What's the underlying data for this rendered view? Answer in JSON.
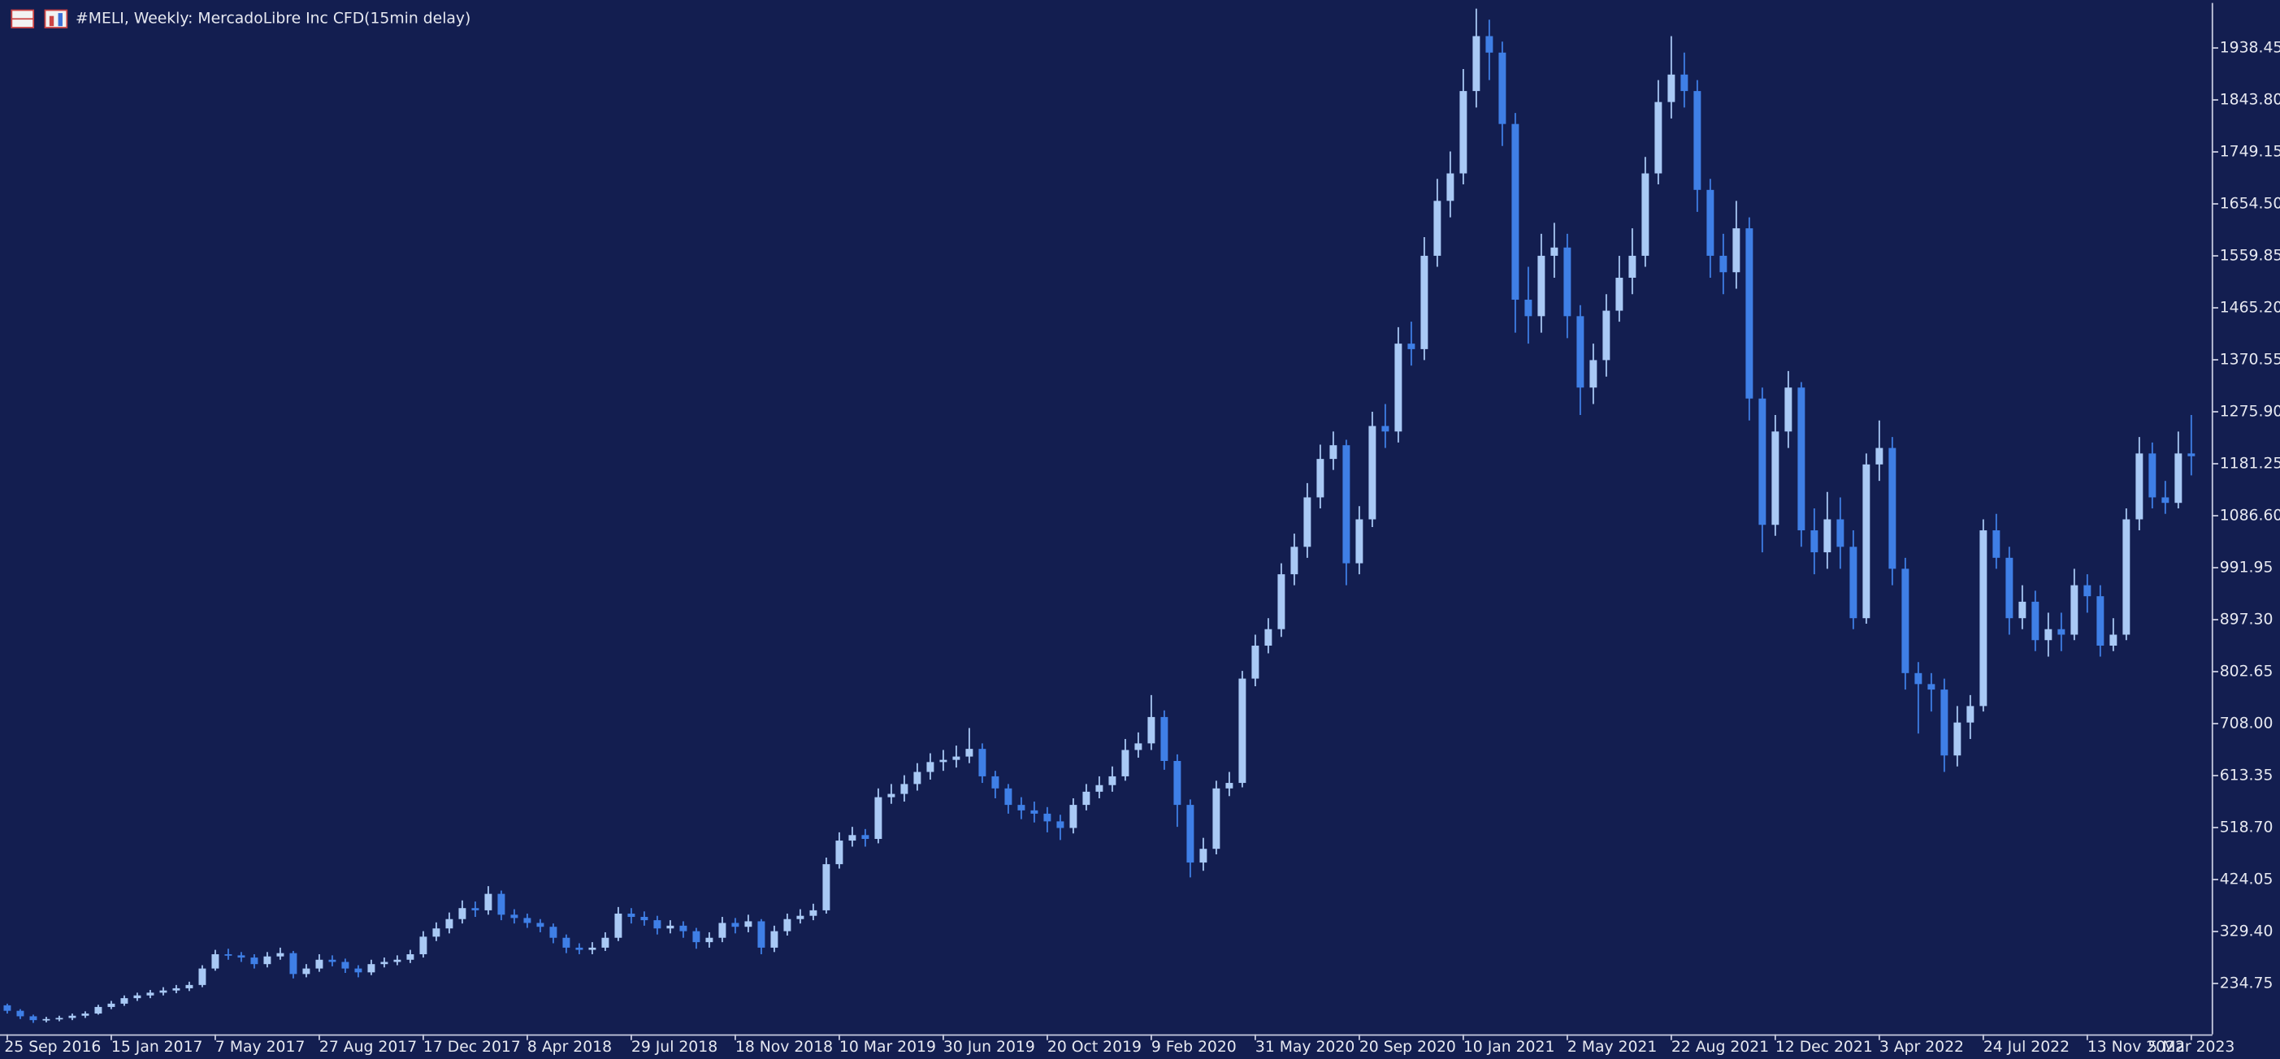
{
  "chart_data": {
    "type": "candlestick",
    "title": "#MELI, Weekly:  MercadoLibre Inc CFD(15min delay)",
    "categories": [
      "25 Sep 2016",
      null,
      null,
      null,
      null,
      null,
      null,
      null,
      "15 Jan 2017",
      null,
      null,
      null,
      null,
      null,
      null,
      null,
      "7 May 2017",
      null,
      null,
      null,
      null,
      null,
      null,
      null,
      "27 Aug 2017",
      null,
      null,
      null,
      null,
      null,
      null,
      null,
      "17 Dec 2017",
      null,
      null,
      null,
      null,
      null,
      null,
      null,
      "8 Apr 2018",
      null,
      null,
      null,
      null,
      null,
      null,
      null,
      "29 Jul 2018",
      null,
      null,
      null,
      null,
      null,
      null,
      null,
      "18 Nov 2018",
      null,
      null,
      null,
      null,
      null,
      null,
      null,
      "10 Mar 2019",
      null,
      null,
      null,
      null,
      null,
      null,
      null,
      "30 Jun 2019",
      null,
      null,
      null,
      null,
      null,
      null,
      null,
      "20 Oct 2019",
      null,
      null,
      null,
      null,
      null,
      null,
      null,
      "9 Feb 2020",
      null,
      null,
      null,
      null,
      null,
      null,
      null,
      "31 May 2020",
      null,
      null,
      null,
      null,
      null,
      null,
      null,
      "20 Sep 2020",
      null,
      null,
      null,
      null,
      null,
      null,
      null,
      "10 Jan 2021",
      null,
      null,
      null,
      null,
      null,
      null,
      null,
      "2 May 2021",
      null,
      null,
      null,
      null,
      null,
      null,
      null,
      "22 Aug 2021",
      null,
      null,
      null,
      null,
      null,
      null,
      null,
      "12 Dec 2021",
      null,
      null,
      null,
      null,
      null,
      null,
      null,
      "3 Apr 2022",
      null,
      null,
      null,
      null,
      null,
      null,
      null,
      "24 Jul 2022",
      null,
      null,
      null,
      null,
      null,
      null,
      null,
      "13 Nov 2022",
      null,
      null,
      null,
      null,
      null,
      null,
      null,
      "5 Mar 2023"
    ],
    "open": [
      195,
      185,
      175,
      168,
      170,
      172,
      176,
      180,
      192,
      198,
      208,
      213,
      218,
      222,
      226,
      232,
      262,
      288,
      286,
      282,
      270,
      284,
      290,
      252,
      262,
      278,
      274,
      262,
      255,
      270,
      274,
      278,
      288,
      320,
      335,
      352,
      372,
      368,
      398,
      360,
      354,
      345,
      338,
      318,
      300,
      296,
      300,
      318,
      362,
      356,
      350,
      335,
      340,
      330,
      310,
      318,
      345,
      338,
      348,
      300,
      330,
      352,
      358,
      368,
      452,
      495,
      505,
      498,
      574,
      580,
      598,
      620,
      638,
      642,
      648,
      662,
      612,
      590,
      560,
      550,
      544,
      530,
      518,
      560,
      584,
      596,
      612,
      660,
      672,
      720,
      640,
      560,
      455,
      480,
      590,
      600,
      790,
      850,
      880,
      980,
      1030,
      1120,
      1190,
      1215,
      1000,
      1080,
      1250,
      1240,
      1400,
      1390,
      1560,
      1660,
      1710,
      1860,
      1960,
      1930,
      1800,
      1480,
      1450,
      1560,
      1575,
      1450,
      1320,
      1370,
      1460,
      1520,
      1560,
      1710,
      1840,
      1890,
      1860,
      1680,
      1560,
      1530,
      1610,
      1300,
      1070,
      1240,
      1320,
      1060,
      1020,
      1080,
      1030,
      900,
      1180,
      1210,
      990,
      800,
      780,
      770,
      650,
      710,
      740,
      1060,
      1010,
      900,
      930,
      860,
      880,
      870,
      960,
      940,
      850,
      870,
      1080,
      1200,
      1120,
      1110,
      1200
    ],
    "high": [
      198,
      188,
      178,
      174,
      176,
      180,
      184,
      196,
      203,
      213,
      218,
      223,
      228,
      232,
      238,
      268,
      296,
      298,
      292,
      288,
      292,
      300,
      294,
      270,
      288,
      286,
      280,
      268,
      278,
      282,
      286,
      296,
      330,
      346,
      364,
      386,
      384,
      412,
      404,
      370,
      362,
      352,
      344,
      324,
      308,
      310,
      328,
      374,
      372,
      366,
      358,
      350,
      348,
      336,
      328,
      356,
      354,
      360,
      352,
      340,
      362,
      370,
      380,
      464,
      510,
      520,
      516,
      590,
      598,
      614,
      636,
      654,
      660,
      668,
      700,
      672,
      622,
      598,
      574,
      566,
      556,
      542,
      572,
      598,
      612,
      630,
      680,
      692,
      760,
      732,
      652,
      570,
      500,
      604,
      620,
      804,
      870,
      900,
      1000,
      1054,
      1146,
      1216,
      1240,
      1225,
      1104,
      1276,
      1290,
      1430,
      1440,
      1594,
      1700,
      1750,
      1900,
      2010,
      1990,
      1950,
      1820,
      1540,
      1600,
      1620,
      1600,
      1470,
      1400,
      1490,
      1560,
      1610,
      1740,
      1880,
      1960,
      1930,
      1880,
      1700,
      1600,
      1660,
      1630,
      1320,
      1270,
      1350,
      1330,
      1100,
      1130,
      1120,
      1060,
      1200,
      1260,
      1230,
      1010,
      820,
      800,
      790,
      740,
      760,
      1080,
      1090,
      1030,
      960,
      950,
      910,
      910,
      990,
      980,
      960,
      900,
      1100,
      1230,
      1220,
      1150,
      1240,
      1270
    ],
    "low": [
      180,
      170,
      163,
      164,
      166,
      168,
      172,
      178,
      188,
      194,
      203,
      208,
      213,
      217,
      221,
      228,
      258,
      278,
      274,
      262,
      264,
      278,
      244,
      246,
      256,
      266,
      254,
      246,
      250,
      264,
      268,
      272,
      282,
      312,
      326,
      344,
      356,
      360,
      350,
      344,
      336,
      328,
      308,
      290,
      288,
      288,
      294,
      312,
      344,
      340,
      324,
      326,
      318,
      298,
      300,
      310,
      326,
      328,
      288,
      292,
      322,
      344,
      350,
      362,
      444,
      484,
      484,
      490,
      562,
      566,
      586,
      606,
      622,
      628,
      636,
      600,
      572,
      544,
      534,
      528,
      510,
      496,
      508,
      550,
      572,
      584,
      604,
      646,
      660,
      624,
      520,
      428,
      440,
      470,
      576,
      592,
      776,
      836,
      866,
      960,
      1010,
      1100,
      1170,
      960,
      980,
      1066,
      1210,
      1220,
      1360,
      1370,
      1540,
      1630,
      1690,
      1830,
      1880,
      1760,
      1420,
      1400,
      1420,
      1520,
      1410,
      1270,
      1290,
      1340,
      1440,
      1490,
      1540,
      1690,
      1810,
      1830,
      1640,
      1520,
      1490,
      1500,
      1260,
      1020,
      1050,
      1210,
      1030,
      980,
      990,
      990,
      880,
      890,
      1150,
      960,
      770,
      690,
      730,
      620,
      630,
      680,
      730,
      990,
      870,
      880,
      840,
      830,
      840,
      860,
      910,
      830,
      840,
      860,
      1060,
      1100,
      1090,
      1100,
      1160
    ],
    "close": [
      185,
      175,
      168,
      170,
      172,
      176,
      180,
      192,
      198,
      208,
      213,
      218,
      222,
      226,
      232,
      262,
      288,
      286,
      282,
      270,
      284,
      290,
      252,
      262,
      278,
      274,
      262,
      255,
      270,
      274,
      278,
      288,
      320,
      335,
      352,
      372,
      368,
      398,
      360,
      354,
      345,
      338,
      318,
      300,
      296,
      300,
      318,
      362,
      356,
      350,
      335,
      340,
      330,
      310,
      318,
      345,
      338,
      348,
      300,
      330,
      352,
      358,
      368,
      452,
      495,
      505,
      498,
      574,
      580,
      598,
      620,
      638,
      642,
      648,
      662,
      612,
      590,
      560,
      550,
      544,
      530,
      518,
      560,
      584,
      596,
      612,
      660,
      672,
      720,
      640,
      560,
      455,
      480,
      590,
      600,
      790,
      850,
      880,
      980,
      1030,
      1120,
      1190,
      1215,
      1000,
      1080,
      1250,
      1240,
      1400,
      1390,
      1560,
      1660,
      1710,
      1860,
      1960,
      1930,
      1800,
      1480,
      1450,
      1560,
      1575,
      1450,
      1320,
      1370,
      1460,
      1520,
      1560,
      1710,
      1840,
      1890,
      1860,
      1680,
      1560,
      1530,
      1610,
      1300,
      1070,
      1240,
      1320,
      1060,
      1020,
      1080,
      1030,
      900,
      1180,
      1210,
      990,
      800,
      780,
      770,
      650,
      710,
      740,
      1060,
      1010,
      900,
      930,
      860,
      880,
      870,
      960,
      940,
      850,
      870,
      1080,
      1200,
      1120,
      1110,
      1200,
      1195
    ],
    "up_color": "#a9c9f5",
    "down_color": "#3f7fe6",
    "ylim": [
      142.2,
      2020.5
    ],
    "yticks": [
      234.75,
      {
        "value": 329.4,
        "label": "329.40"
      },
      424.05,
      {
        "value": 518.7,
        "label": "518.70"
      },
      613.35,
      {
        "value": 708,
        "label": "708.00"
      },
      802.65,
      {
        "value": 897.3,
        "label": "897.30"
      },
      991.95,
      {
        "value": 1086.6,
        "label": "1086.60"
      },
      1181.25,
      {
        "value": 1275.9,
        "label": "1275.90"
      },
      1370.55,
      {
        "value": 1465.2,
        "label": "1465.20"
      },
      1559.85,
      {
        "value": 1654.5,
        "label": "1654.50"
      },
      1749.15,
      {
        "value": 1843.8,
        "label": "1843.80"
      },
      1938.45
    ]
  }
}
